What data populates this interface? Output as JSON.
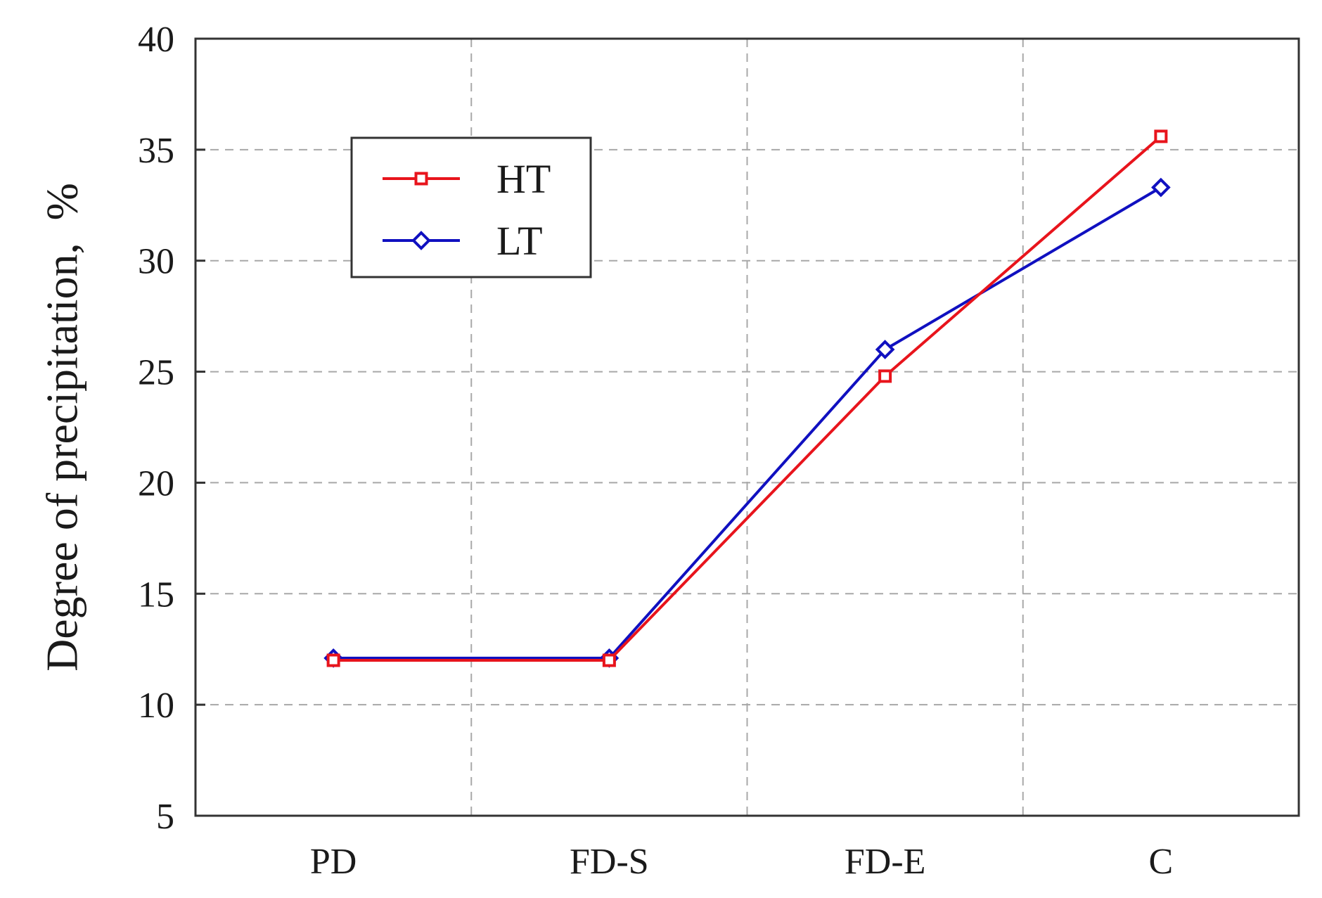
{
  "chart_data": {
    "type": "line",
    "title": "",
    "xlabel": "",
    "ylabel": "Degree of precipitation,  %",
    "categories": [
      "PD",
      "FD-S",
      "FD-E",
      "C"
    ],
    "ylim": [
      5,
      40
    ],
    "yticks": [
      5,
      10,
      15,
      20,
      25,
      30,
      35,
      40
    ],
    "grid": true,
    "legend_position": "top-left",
    "series": [
      {
        "name": "HT",
        "values": [
          12.0,
          12.0,
          24.8,
          35.6
        ],
        "color": "#e8141c",
        "marker": "square"
      },
      {
        "name": "LT",
        "values": [
          12.1,
          12.1,
          26.0,
          33.3
        ],
        "color": "#1010c0",
        "marker": "diamond"
      }
    ]
  }
}
